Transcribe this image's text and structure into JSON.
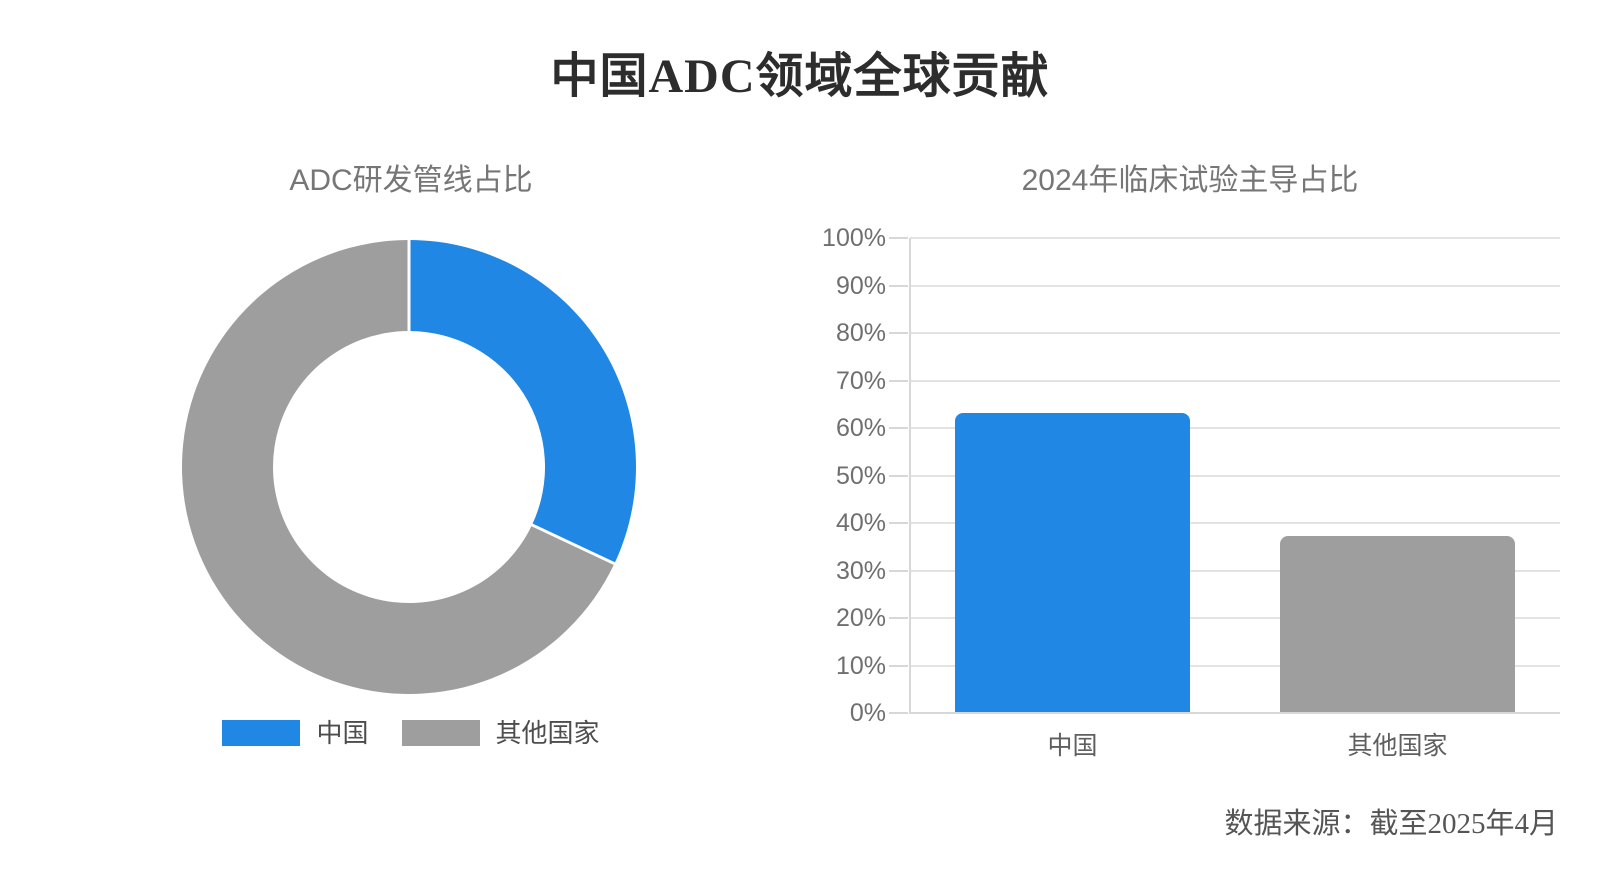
{
  "page": {
    "title": "中国ADC领域全球贡献",
    "source_note": "数据来源：截至2025年4月"
  },
  "colors": {
    "china": "#2187e4",
    "others": "#9e9e9e",
    "grid": "#e3e3e3",
    "axis": "#d7d7d7",
    "main_title_text": "#2d2d2d",
    "chart_title_text": "#767676",
    "tick_text": "#6f6f6f",
    "category_text": "#5f5f5f",
    "legend_text": "#4d4d4d",
    "source_text": "#555555"
  },
  "legend": {
    "items": [
      {
        "label": "中国",
        "color": "#2187e4"
      },
      {
        "label": "其他国家",
        "color": "#9e9e9e"
      }
    ]
  },
  "chart_data": [
    {
      "type": "pie",
      "variant": "donut",
      "title": "ADC研发管线占比",
      "labels": [
        "中国",
        "其他国家"
      ],
      "values": [
        32,
        68
      ],
      "unit": "%",
      "colors": [
        "#2187e4",
        "#9e9e9e"
      ],
      "start_angle_deg": 0,
      "direction": "clockwise",
      "inner_radius_ratio": 0.6,
      "separator_color": "#ffffff",
      "legend_position": "bottom"
    },
    {
      "type": "bar",
      "title": "2024年临床试验主导占比",
      "categories": [
        "中国",
        "其他国家"
      ],
      "values": [
        63,
        37
      ],
      "unit": "%",
      "colors": [
        "#2187e4",
        "#9e9e9e"
      ],
      "ylim": [
        0,
        100
      ],
      "ytick_step": 10,
      "ytick_suffix": "%",
      "grid": true,
      "legend_position": "none"
    }
  ]
}
